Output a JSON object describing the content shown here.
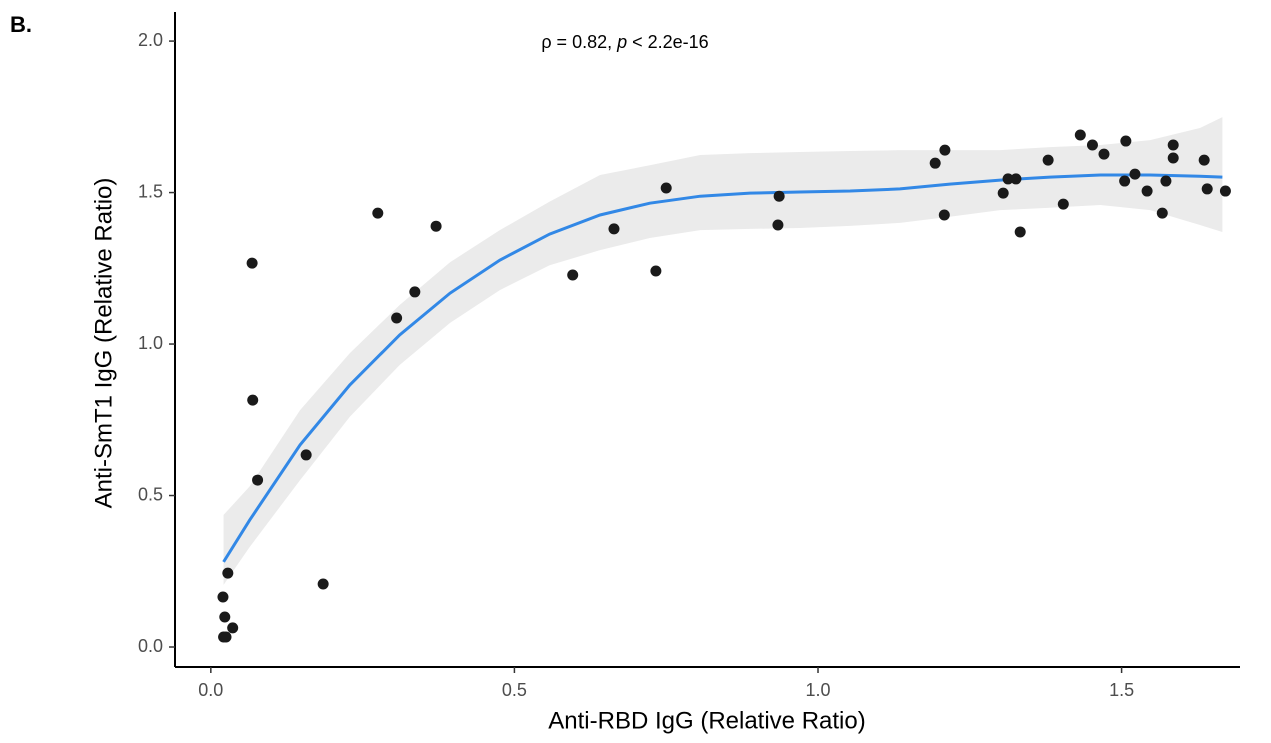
{
  "chart_data": {
    "type": "scatter",
    "panel_label": "B.",
    "annotation_parts": [
      "ρ = 0.82, ",
      "p",
      " < 2.2e-16"
    ],
    "xlabel": "Anti-RBD IgG (Relative Ratio)",
    "ylabel": "Anti-SmT1 IgG (Relative Ratio)",
    "xlim": [
      -0.059,
      1.695
    ],
    "ylim": [
      -0.066,
      2.096
    ],
    "xticks": [
      {
        "value": 0,
        "label": "0.0"
      },
      0.5,
      {
        "value": 1,
        "label": "1.0"
      },
      1.5
    ],
    "yticks": [
      {
        "value": 0,
        "label": "0.0"
      },
      0.5,
      {
        "value": 1,
        "label": "1.0"
      },
      1.5,
      {
        "value": 2,
        "label": "2.0"
      }
    ],
    "color": "#1a1a1a",
    "x": [
      0.021,
      0.025,
      0.036,
      0.023,
      0.02,
      0.028,
      0.077,
      0.069,
      0.068,
      0.157,
      0.185,
      0.275,
      0.306,
      0.336,
      0.371,
      0.596,
      0.664,
      0.733,
      0.75,
      0.936,
      0.934,
      1.193,
      1.209,
      1.208,
      1.305,
      1.313,
      1.326,
      1.333,
      1.379,
      1.404,
      1.432,
      1.452,
      1.471,
      1.507,
      1.505,
      1.522,
      1.542,
      1.567,
      1.573,
      1.585,
      1.585,
      1.636,
      1.641,
      1.671
    ],
    "values": [
      0.033,
      0.033,
      0.063,
      0.099,
      0.165,
      0.244,
      0.551,
      0.815,
      1.267,
      0.634,
      0.208,
      1.432,
      1.086,
      1.172,
      1.389,
      1.228,
      1.38,
      1.241,
      1.515,
      1.488,
      1.393,
      1.597,
      1.64,
      1.426,
      1.498,
      1.545,
      1.545,
      1.37,
      1.607,
      1.462,
      1.69,
      1.657,
      1.627,
      1.67,
      1.538,
      1.561,
      1.505,
      1.432,
      1.538,
      1.657,
      1.614,
      1.607,
      1.512,
      1.505
    ],
    "fit": {
      "color": "#3288e6",
      "band_color": "#ebebeb",
      "x": [
        0.021,
        0.064,
        0.147,
        0.229,
        0.311,
        0.394,
        0.476,
        0.558,
        0.641,
        0.723,
        0.806,
        0.888,
        0.97,
        1.053,
        1.135,
        1.217,
        1.3,
        1.382,
        1.465,
        1.547,
        1.629,
        1.666
      ],
      "values": [
        0.281,
        0.419,
        0.667,
        0.865,
        1.03,
        1.168,
        1.277,
        1.363,
        1.426,
        1.465,
        1.488,
        1.498,
        1.502,
        1.505,
        1.512,
        1.528,
        1.541,
        1.551,
        1.558,
        1.558,
        1.554,
        1.551
      ],
      "lower": [
        0.205,
        0.33,
        0.551,
        0.76,
        0.931,
        1.07,
        1.178,
        1.26,
        1.31,
        1.35,
        1.376,
        1.38,
        1.383,
        1.39,
        1.4,
        1.42,
        1.442,
        1.45,
        1.459,
        1.442,
        1.393,
        1.37
      ],
      "upper": [
        0.436,
        0.53,
        0.782,
        0.97,
        1.129,
        1.27,
        1.376,
        1.47,
        1.558,
        1.59,
        1.624,
        1.63,
        1.634,
        1.637,
        1.64,
        1.64,
        1.64,
        1.65,
        1.657,
        1.673,
        1.713,
        1.749
      ]
    }
  }
}
